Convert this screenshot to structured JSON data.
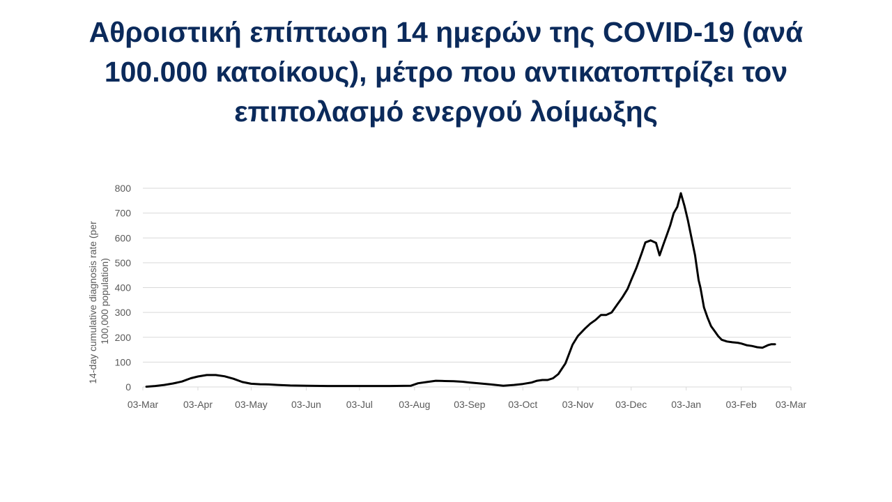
{
  "slide": {
    "title_lines": [
      "Αθροιστική επίπτωση 14 ημερών της COVID-19 (ανά",
      "100.000 κατοίκους), μέτρο που αντικατοπτρίζει τον",
      "επιπολασμό ενεργού λοίμωξης"
    ]
  },
  "chart_data": {
    "type": "line",
    "title": "",
    "ylabel_lines": [
      "14-day cumulative diagnosis rate (per",
      "100,000 population)"
    ],
    "xlabel": "",
    "x_ticks": [
      "03-Mar",
      "03-Apr",
      "03-May",
      "03-Jun",
      "03-Jul",
      "03-Aug",
      "03-Sep",
      "03-Oct",
      "03-Nov",
      "03-Dec",
      "03-Jan",
      "03-Feb",
      "03-Mar"
    ],
    "x_tick_dates": [
      "2020-03-03",
      "2020-04-03",
      "2020-05-03",
      "2020-06-03",
      "2020-07-03",
      "2020-08-03",
      "2020-09-03",
      "2020-10-03",
      "2020-11-03",
      "2020-12-03",
      "2021-01-03",
      "2021-02-03",
      "2021-03-03"
    ],
    "y_ticks": [
      0,
      100,
      200,
      300,
      400,
      500,
      600,
      700,
      800
    ],
    "ylim": [
      0,
      800
    ],
    "grid": "horizontal",
    "legend": "none",
    "line_color": "#000000",
    "series": [
      {
        "x": [
          "2020-03-05",
          "2020-03-10",
          "2020-03-15",
          "2020-03-20",
          "2020-03-25",
          "2020-03-30",
          "2020-04-03",
          "2020-04-08",
          "2020-04-13",
          "2020-04-18",
          "2020-04-23",
          "2020-04-28",
          "2020-05-03",
          "2020-05-08",
          "2020-05-13",
          "2020-05-18",
          "2020-05-25",
          "2020-06-03",
          "2020-06-15",
          "2020-07-03",
          "2020-07-20",
          "2020-08-01",
          "2020-08-05",
          "2020-08-10",
          "2020-08-15",
          "2020-08-20",
          "2020-08-25",
          "2020-08-30",
          "2020-09-03",
          "2020-09-08",
          "2020-09-15",
          "2020-09-22",
          "2020-09-28",
          "2020-10-03",
          "2020-10-08",
          "2020-10-11",
          "2020-10-14",
          "2020-10-17",
          "2020-10-20",
          "2020-10-23",
          "2020-10-27",
          "2020-10-31",
          "2020-11-03",
          "2020-11-07",
          "2020-11-10",
          "2020-11-13",
          "2020-11-16",
          "2020-11-19",
          "2020-11-22",
          "2020-11-25",
          "2020-11-28",
          "2020-12-01",
          "2020-12-03",
          "2020-12-06",
          "2020-12-09",
          "2020-12-11",
          "2020-12-14",
          "2020-12-17",
          "2020-12-19",
          "2020-12-21",
          "2020-12-23",
          "2020-12-25",
          "2020-12-27",
          "2020-12-29",
          "2020-12-31",
          "2021-01-02",
          "2021-01-04",
          "2021-01-06",
          "2021-01-08",
          "2021-01-10",
          "2021-01-11",
          "2021-01-13",
          "2021-01-15",
          "2021-01-17",
          "2021-01-19",
          "2021-01-21",
          "2021-01-23",
          "2021-01-26",
          "2021-01-29",
          "2021-02-01",
          "2021-02-03",
          "2021-02-06",
          "2021-02-09",
          "2021-02-12",
          "2021-02-15",
          "2021-02-18",
          "2021-02-20",
          "2021-02-22"
        ],
        "values": [
          1,
          4,
          8,
          14,
          22,
          35,
          42,
          48,
          48,
          43,
          33,
          20,
          13,
          11,
          10,
          8,
          6,
          5,
          4,
          4,
          4,
          5,
          15,
          20,
          25,
          24,
          23,
          21,
          18,
          15,
          10,
          5,
          8,
          12,
          18,
          25,
          28,
          28,
          35,
          52,
          95,
          170,
          205,
          235,
          255,
          270,
          290,
          290,
          300,
          330,
          360,
          395,
          430,
          480,
          540,
          582,
          590,
          580,
          530,
          570,
          610,
          650,
          700,
          725,
          780,
          730,
          670,
          600,
          530,
          430,
          400,
          320,
          280,
          245,
          225,
          205,
          190,
          183,
          180,
          178,
          175,
          168,
          165,
          160,
          158,
          168,
          172,
          172
        ]
      }
    ]
  }
}
